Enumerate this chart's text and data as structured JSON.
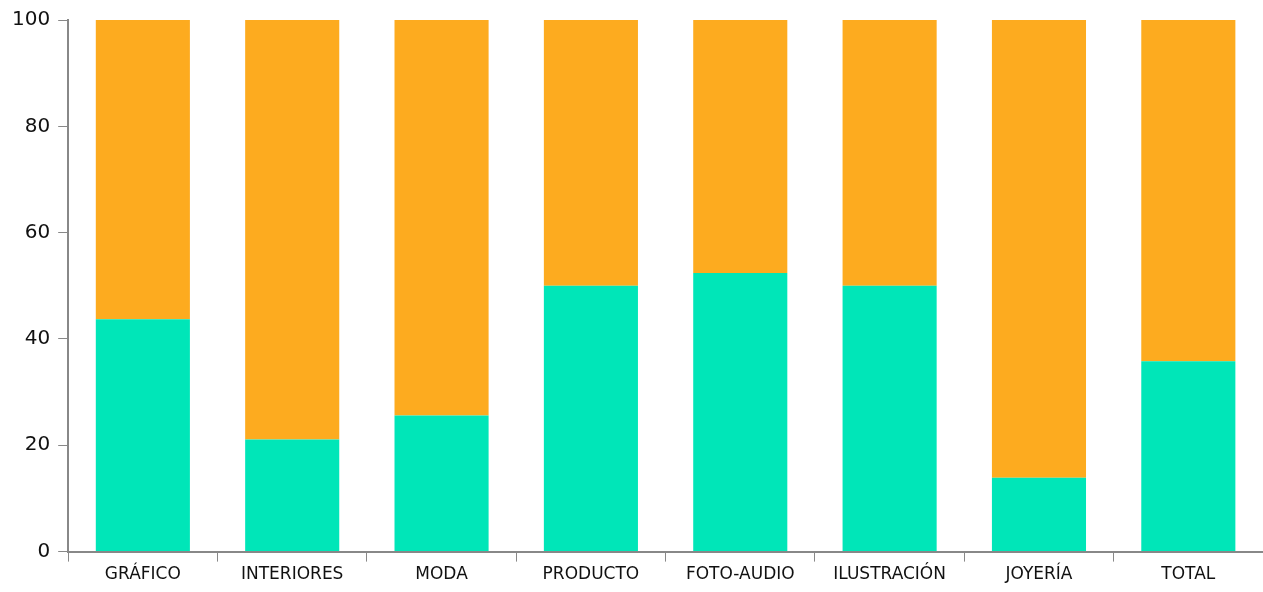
{
  "chart_data": {
    "type": "bar",
    "stacked": true,
    "categories": [
      "GRÁFICO",
      "INTERIORES",
      "MODA",
      "PRODUCTO",
      "FOTO-AUDIO",
      "ILUSTRACIÓN",
      "JOYERÍA",
      "TOTAL"
    ],
    "series": [
      {
        "color": "#00e6b8",
        "values": [
          43.7,
          21.1,
          25.6,
          50,
          52.4,
          50,
          13.9,
          35.8
        ]
      },
      {
        "color": "#fdab1f",
        "values": [
          56.3,
          78.9,
          74.4,
          50,
          47.6,
          50,
          86.1,
          64.2
        ]
      }
    ],
    "ylim": [
      0,
      100
    ],
    "yticks": [
      0,
      20,
      40,
      60,
      80,
      100
    ],
    "grid": false,
    "legend": false
  }
}
